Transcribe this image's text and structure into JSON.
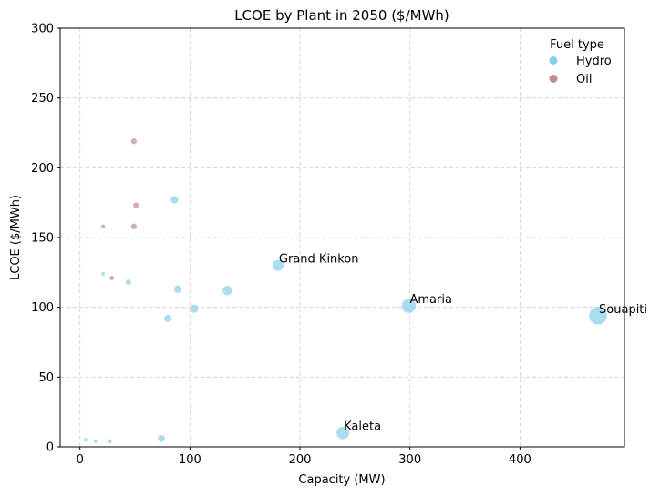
{
  "chart_data": {
    "type": "scatter",
    "title": "LCOE by Plant in 2050 ($/MWh)",
    "xlabel": "Capacity (MW)",
    "ylabel": "LCOE ($/MWh)",
    "xlim": [
      -18,
      495
    ],
    "ylim": [
      0,
      300
    ],
    "xticks": [
      0,
      100,
      200,
      300,
      400
    ],
    "yticks": [
      0,
      50,
      100,
      150,
      200,
      250,
      300
    ],
    "grid": true,
    "legend": {
      "title": "Fuel type",
      "position": "top-right"
    },
    "series": [
      {
        "name": "Hydro",
        "color": "#87ceeb",
        "points": [
          {
            "x": 5,
            "y": 5
          },
          {
            "x": 14,
            "y": 4
          },
          {
            "x": 27,
            "y": 4
          },
          {
            "x": 74,
            "y": 6
          },
          {
            "x": 21,
            "y": 124
          },
          {
            "x": 44,
            "y": 118
          },
          {
            "x": 80,
            "y": 92
          },
          {
            "x": 86,
            "y": 177
          },
          {
            "x": 89,
            "y": 113
          },
          {
            "x": 104,
            "y": 99
          },
          {
            "x": 134,
            "y": 112
          },
          {
            "x": 180,
            "y": 130,
            "label": "Grand Kinkon"
          },
          {
            "x": 239,
            "y": 10,
            "label": "Kaleta"
          },
          {
            "x": 299,
            "y": 101,
            "label": "Amaria"
          },
          {
            "x": 471,
            "y": 94,
            "label": "Souapiti"
          }
        ]
      },
      {
        "name": "Oil",
        "color": "#bc8f8f",
        "points": [
          {
            "x": 21,
            "y": 158
          },
          {
            "x": 29,
            "y": 121
          },
          {
            "x": 49,
            "y": 158
          },
          {
            "x": 49,
            "y": 219
          },
          {
            "x": 51,
            "y": 173
          }
        ]
      }
    ]
  }
}
